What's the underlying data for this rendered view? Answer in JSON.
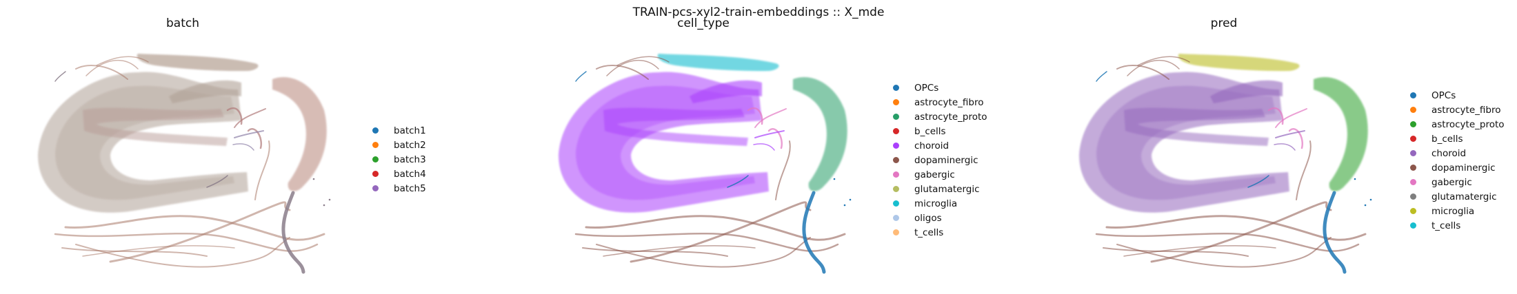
{
  "suptitle": "TRAIN-pcs-xyl2-train-embeddings :: X_mde",
  "chart_data": [
    {
      "type": "scatter",
      "title": "batch",
      "legend_position": "right",
      "legend": [
        {
          "label": "batch1",
          "color": "#1f77b4"
        },
        {
          "label": "batch2",
          "color": "#ff7f0e"
        },
        {
          "label": "batch3",
          "color": "#2ca02c"
        },
        {
          "label": "batch4",
          "color": "#d62728"
        },
        {
          "label": "batch5",
          "color": "#9467bd"
        }
      ],
      "region_colors": {
        "bigU": "#b0a196",
        "strands": "#a97a6a",
        "smallU": "#b89b96",
        "top": "#a89080",
        "right": "#b8867a",
        "blueBottom": "#8a7c8a",
        "vpink": "#b07a7a",
        "vpurple": "#8f82a8"
      }
    },
    {
      "type": "scatter",
      "title": "cell_type",
      "legend_position": "right",
      "legend": [
        {
          "label": "OPCs",
          "color": "#1f77b4"
        },
        {
          "label": "astrocyte_fibro",
          "color": "#ff7f0e"
        },
        {
          "label": "astrocyte_proto",
          "color": "#279e68"
        },
        {
          "label": "b_cells",
          "color": "#d62728"
        },
        {
          "label": "choroid",
          "color": "#aa40fc"
        },
        {
          "label": "dopaminergic",
          "color": "#8c564b"
        },
        {
          "label": "gabergic",
          "color": "#e377c2"
        },
        {
          "label": "glutamatergic",
          "color": "#b5bd61"
        },
        {
          "label": "microglia",
          "color": "#17becf"
        },
        {
          "label": "oligos",
          "color": "#aec7e8"
        },
        {
          "label": "t_cells",
          "color": "#ffbb78"
        }
      ],
      "region_colors": {
        "bigU": "#aa40fc",
        "strands": "#8c564b",
        "smallU": "#aa40fc",
        "top": "#17becf",
        "right": "#279e68",
        "blueBottom": "#1f77b4",
        "vpink": "#e377c2",
        "vpurple": "#aa40fc"
      }
    },
    {
      "type": "scatter",
      "title": "pred",
      "legend_position": "right",
      "legend": [
        {
          "label": "OPCs",
          "color": "#1f77b4"
        },
        {
          "label": "astrocyte_fibro",
          "color": "#ff7f0e"
        },
        {
          "label": "astrocyte_proto",
          "color": "#2ca02c"
        },
        {
          "label": "b_cells",
          "color": "#d62728"
        },
        {
          "label": "choroid",
          "color": "#9467bd"
        },
        {
          "label": "dopaminergic",
          "color": "#8c564b"
        },
        {
          "label": "gabergic",
          "color": "#e377c2"
        },
        {
          "label": "glutamatergic",
          "color": "#7f7f7f"
        },
        {
          "label": "microglia",
          "color": "#bcbd22"
        },
        {
          "label": "t_cells",
          "color": "#17becf"
        }
      ],
      "region_colors": {
        "bigU": "#9467bd",
        "strands": "#8c564b",
        "smallU": "#9467bd",
        "top": "#bcbd22",
        "right": "#2ca02c",
        "blueBottom": "#1f77b4",
        "vpink": "#e377c2",
        "vpurple": "#9467bd"
      }
    }
  ]
}
